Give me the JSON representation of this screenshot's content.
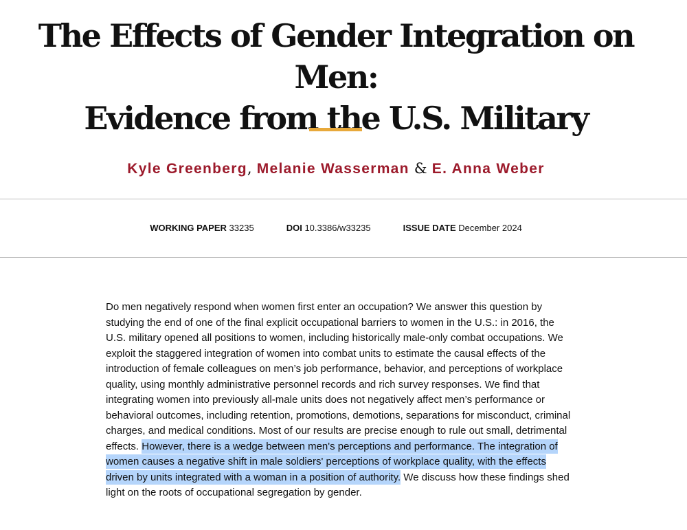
{
  "title": {
    "line1": "The Effects of Gender Integration on Men:",
    "line2": "Evidence from the U.S. Military"
  },
  "colors": {
    "accent_rule": "#e8a93b",
    "author_link": "#9c1a2b",
    "selection_highlight": "#b5d5fb"
  },
  "authors": {
    "names": [
      "Kyle Greenberg",
      "Melanie Wasserman",
      "E. Anna Weber"
    ],
    "separator_comma": ",",
    "separator_and": "&"
  },
  "meta": {
    "working_paper_label": "WORKING PAPER",
    "working_paper_value": "33235",
    "doi_label": "DOI",
    "doi_value": "10.3386/w33235",
    "issue_date_label": "ISSUE DATE",
    "issue_date_value": "December 2024"
  },
  "abstract": {
    "before_selection": "Do men negatively respond when women first enter an occupation? We answer this question by studying the end of one of the final explicit occupational barriers to women in the U.S.: in 2016, the U.S. military opened all positions to women, including historically male-only combat occupations. We exploit the staggered integration of women into combat units to estimate the causal effects of the introduction of female colleagues on men’s job performance, behavior, and perceptions of workplace quality, using monthly administrative personnel records and rich survey responses. We find that integrating women into previously all-male units does not negatively affect men’s performance or behavioral outcomes, including retention, promotions, demotions, separations for misconduct, criminal charges, and medical conditions. Most of our results are precise enough to rule out small, detrimental effects. ",
    "selected": "However, there is a wedge between men's perceptions and performance. The integration of women causes a negative shift in male soldiers' perceptions of workplace quality, with the effects driven by units integrated with a woman in a position of authority.",
    "after_selection": " We discuss how these findings shed light on the roots of occupational segregation by gender."
  }
}
